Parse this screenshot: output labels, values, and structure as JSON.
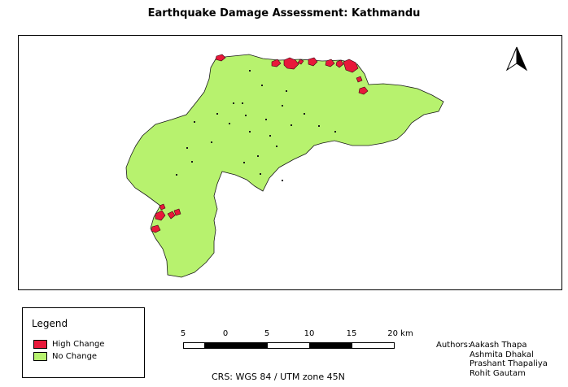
{
  "title": "Earthquake Damage Assessment: Kathmandu",
  "legend": {
    "title": "Legend",
    "items": [
      {
        "label": "High Change",
        "color": "#e8183a"
      },
      {
        "label": "No Change",
        "color": "#b7f26e"
      }
    ]
  },
  "scalebar": {
    "ticks": [
      "5",
      "0",
      "5",
      "10",
      "15",
      "20 km"
    ]
  },
  "crs": "CRS: WGS 84 / UTM zone 45N",
  "authors": {
    "label": "Authors:",
    "names": [
      "Aakash Thapa",
      "Ashmita Dhakal",
      "Prashant Thapaliya",
      "Rohit Gautam"
    ]
  },
  "colors": {
    "no_change": "#b7f26e",
    "high_change": "#e8183a",
    "outline": "#1a1a1a"
  },
  "north_arrow": "north-arrow-icon"
}
